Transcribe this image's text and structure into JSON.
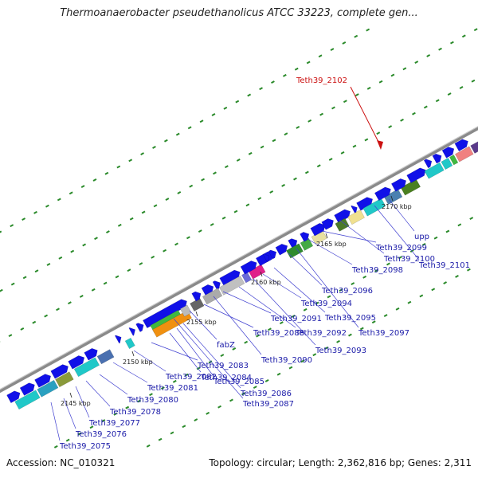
{
  "title": "Thermoanaerobacter pseudethanolicus ATCC 33223, complete gen...",
  "footer": {
    "accession": "Accession: NC_010321",
    "summary": "Topology: circular; Length: 2,362,816 bp; Genes: 2,311"
  },
  "highlight": {
    "label": "Teth39_2102",
    "color": "#cc1111"
  },
  "scale_labels": [
    "2145 kbp",
    "2150 kbp",
    "2155 kbp",
    "2160 kbp",
    "2165 kbp",
    "2170 kbp"
  ],
  "gene_labels": [
    "Teth39_2075",
    "Teth39_2076",
    "Teth39_2077",
    "Teth39_2078",
    "Teth39_2080",
    "Teth39_2081",
    "Teth39_2082",
    "Teth39_2083",
    "Teth39_2084",
    "Teth39_2085",
    "Teth39_2086",
    "Teth39_2087",
    "fabZ",
    "Teth39_2088",
    "Teth39_2090",
    "Teth39_2091",
    "Teth39_2092",
    "Teth39_2093",
    "Teth39_2094",
    "Teth39_2095",
    "Teth39_2096",
    "Teth39_2097",
    "Teth39_2098",
    "Teth39_2099",
    "Teth39_2100",
    "Teth39_2101",
    "upp"
  ],
  "colors": {
    "gene": "#1010e8",
    "backbone": "#8a8a8a",
    "dots": "#2a8a2a",
    "label": "#1a1aa8"
  }
}
